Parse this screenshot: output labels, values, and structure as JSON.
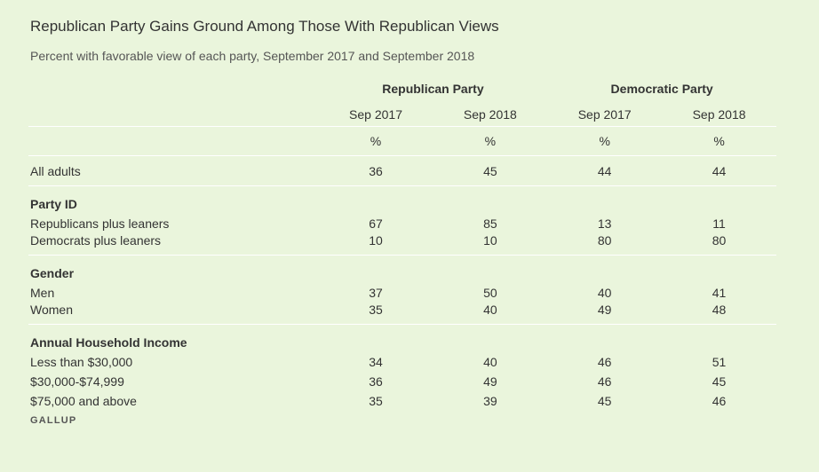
{
  "title": "Republican Party Gains Ground Among Those With Republican Views",
  "subtitle": "Percent with favorable view of each party, September 2017 and September 2018",
  "source": "GALLUP",
  "chart_data": {
    "type": "table",
    "groups": [
      "Republican Party",
      "Democratic Party"
    ],
    "columns": [
      "Sep 2017",
      "Sep 2018",
      "Sep 2017",
      "Sep 2018"
    ],
    "units": [
      "%",
      "%",
      "%",
      "%"
    ],
    "all_adults": {
      "label": "All adults",
      "values": [
        "36",
        "45",
        "44",
        "44"
      ]
    },
    "sections": [
      {
        "heading": "Party ID",
        "rows": [
          {
            "label": "Republicans plus leaners",
            "values": [
              "67",
              "85",
              "13",
              "11"
            ]
          },
          {
            "label": "Democrats plus leaners",
            "values": [
              "10",
              "10",
              "80",
              "80"
            ]
          }
        ]
      },
      {
        "heading": "Gender",
        "rows": [
          {
            "label": "Men",
            "values": [
              "37",
              "50",
              "40",
              "41"
            ]
          },
          {
            "label": "Women",
            "values": [
              "35",
              "40",
              "49",
              "48"
            ]
          }
        ]
      },
      {
        "heading": "Annual Household Income",
        "rows": [
          {
            "label": "Less than $30,000",
            "values": [
              "34",
              "40",
              "46",
              "51"
            ]
          },
          {
            "label": "$30,000-$74,999",
            "values": [
              "36",
              "49",
              "46",
              "45"
            ]
          },
          {
            "label": "$75,000 and above",
            "values": [
              "35",
              "39",
              "45",
              "46"
            ]
          }
        ]
      }
    ]
  }
}
